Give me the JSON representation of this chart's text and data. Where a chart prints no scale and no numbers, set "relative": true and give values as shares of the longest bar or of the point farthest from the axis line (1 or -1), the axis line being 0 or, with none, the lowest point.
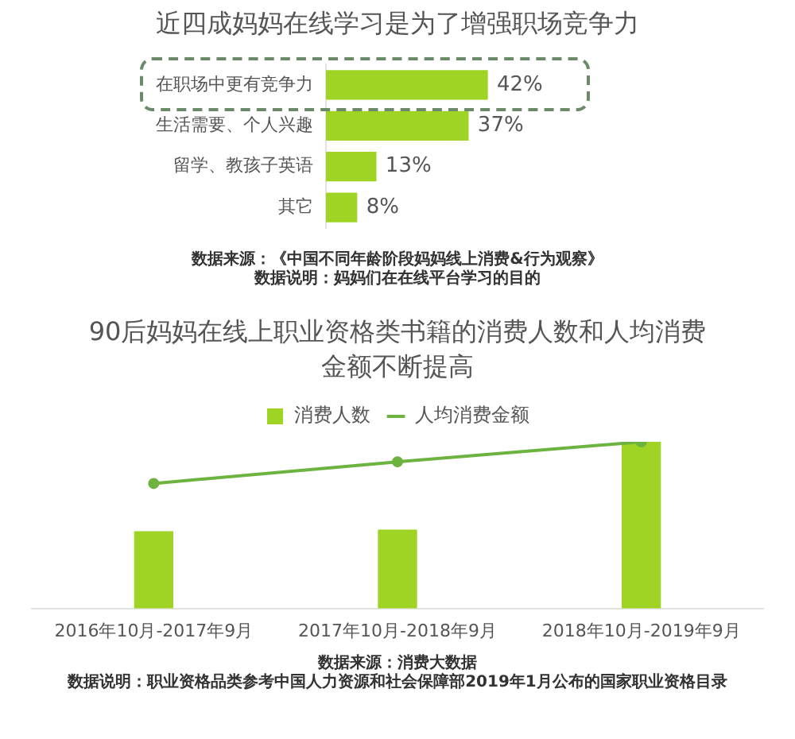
{
  "chart_data": [
    {
      "type": "bar",
      "orientation": "horizontal",
      "title": "近四成妈妈在线学习是为了增强职场竞争力",
      "categories": [
        "在职场中更有竞争力",
        "生活需要、个人兴趣",
        "留学、教孩子英语",
        "其它"
      ],
      "values": [
        42,
        37,
        13,
        8
      ],
      "color": "#9fd425",
      "value_labels": [
        "42%",
        "37%",
        "13%",
        "8%"
      ],
      "tick_labels": "y",
      "grid": false,
      "legend": false,
      "annotations": [
        "数据来源：《中国不同年龄阶段妈妈线上消费&行为观察》",
        "数据说明：妈妈们在在线平台学习的目的"
      ]
    },
    {
      "type": "bar",
      "relative": true,
      "title": "90后妈妈在线上职业资格类书籍的消费人数和人均消费金额不断提高",
      "categories": [
        "2016年10月-2017年9月",
        "2017年10月-2018年9月",
        "2018年10月-2019年9月"
      ],
      "series": [
        {
          "name": "消费人数",
          "color": "#9fd425",
          "values": [
            0.46,
            0.47,
            1
          ]
        },
        {
          "name": "人均消费金额",
          "type": "line",
          "color": "#6db33f",
          "values": [
            0.75,
            0.88,
            1
          ],
          "marker": "circle"
        }
      ],
      "tick_labels": "x",
      "grid": false,
      "legend": "top",
      "annotations": [
        "数据来源：消费大数据",
        "数据说明：职业资格品类参考中国人力资源和社会保障部2019年1月公布的国家职业资格目录"
      ]
    }
  ]
}
